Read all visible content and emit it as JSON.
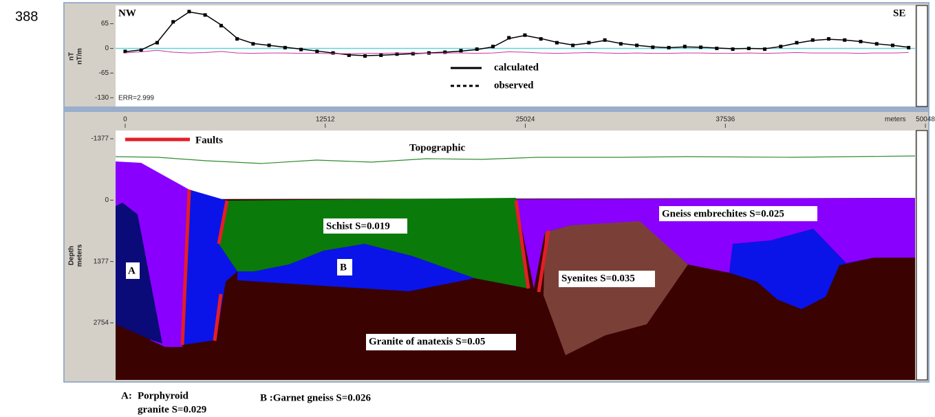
{
  "figure_number": "388",
  "chart_data": [
    {
      "type": "line",
      "corner_left": "NW",
      "corner_right": "SE",
      "y_label": [
        "nT",
        "nT/m"
      ],
      "annotation": "ERR=2.999",
      "x": [
        0,
        1000,
        2000,
        3000,
        4000,
        5000,
        6000,
        7000,
        8000,
        9000,
        10000,
        11000,
        12000,
        13000,
        14000,
        15000,
        16000,
        17000,
        18000,
        19000,
        20000,
        21000,
        22000,
        23000,
        24000,
        25000,
        26000,
        27000,
        28000,
        29000,
        30000,
        31000,
        32000,
        33000,
        34000,
        35000,
        36000,
        37000,
        38000,
        39000,
        40000,
        41000,
        42000,
        43000,
        44000,
        45000,
        46000,
        47000,
        48000,
        49000
      ],
      "series": [
        {
          "name": "calculated",
          "style": "solid",
          "color": "#000000",
          "values": [
            -9,
            -4,
            16,
            68,
            96,
            89,
            62,
            27,
            13,
            8,
            3,
            -2,
            -7,
            -12,
            -17,
            -19,
            -18,
            -16,
            -14,
            -12,
            -10,
            -7,
            -3,
            4,
            26,
            34,
            26,
            16,
            9,
            14,
            21,
            13,
            8,
            4,
            2,
            4,
            3,
            1,
            -1,
            0,
            -1,
            5,
            14,
            21,
            24,
            22,
            18,
            12,
            8,
            3
          ]
        },
        {
          "name": "observed",
          "style": "dotted",
          "color": "#000000",
          "values": [
            -8,
            -5,
            15,
            70,
            97,
            88,
            60,
            25,
            12,
            8,
            2,
            -3,
            -8,
            -12,
            -18,
            -20,
            -18,
            -15,
            -14,
            -12,
            -10,
            -6,
            -2,
            5,
            28,
            35,
            25,
            15,
            8,
            15,
            22,
            12,
            8,
            3,
            2,
            5,
            3,
            0,
            -2,
            0,
            -2,
            5,
            15,
            22,
            25,
            22,
            18,
            12,
            8,
            2
          ]
        },
        {
          "color": "#cc3399",
          "style": "thin",
          "values": [
            -12,
            -9,
            -5,
            -10,
            -12,
            -11,
            -8,
            -12,
            -13,
            -12,
            -12,
            -13,
            -13,
            -14,
            -14,
            -13,
            -13,
            -12,
            -12,
            -13,
            -12,
            -12,
            -13,
            -12,
            -9,
            -10,
            -12,
            -13,
            -12,
            -11,
            -12,
            -13,
            -12,
            -13,
            -13,
            -12,
            -12,
            -13,
            -13,
            -12,
            -13,
            -12,
            -11,
            -12,
            -12,
            -12,
            -13,
            -12,
            -12,
            -11
          ]
        }
      ],
      "xlim": [
        -600,
        49400
      ],
      "ylim": [
        -153,
        113
      ],
      "yticks": [
        -130,
        -65,
        0,
        65
      ],
      "zero_line": true,
      "legend": "center"
    },
    {
      "type": "section",
      "x_label": "meters",
      "y_label": [
        "Depth",
        "meters"
      ],
      "xlim": [
        -600,
        49400
      ],
      "xticks": [
        0,
        12512,
        25024,
        37536,
        50048
      ],
      "ylim": [
        -1562,
        4034
      ],
      "yticks": [
        -1377,
        0,
        1377,
        2754
      ],
      "fault_legend": "Faults",
      "topography_label": "Topographic",
      "units": [
        "Schist S=0.019",
        "B",
        "A",
        "Gneiss embrechites S=0.025",
        "Syenites S=0.035",
        "Granite of anatexis S=0.05"
      ]
    }
  ],
  "footnotes": [
    "A:",
    "Porphyroid",
    "granite S=0.029",
    "B :Garnet gneiss S=0.026"
  ]
}
